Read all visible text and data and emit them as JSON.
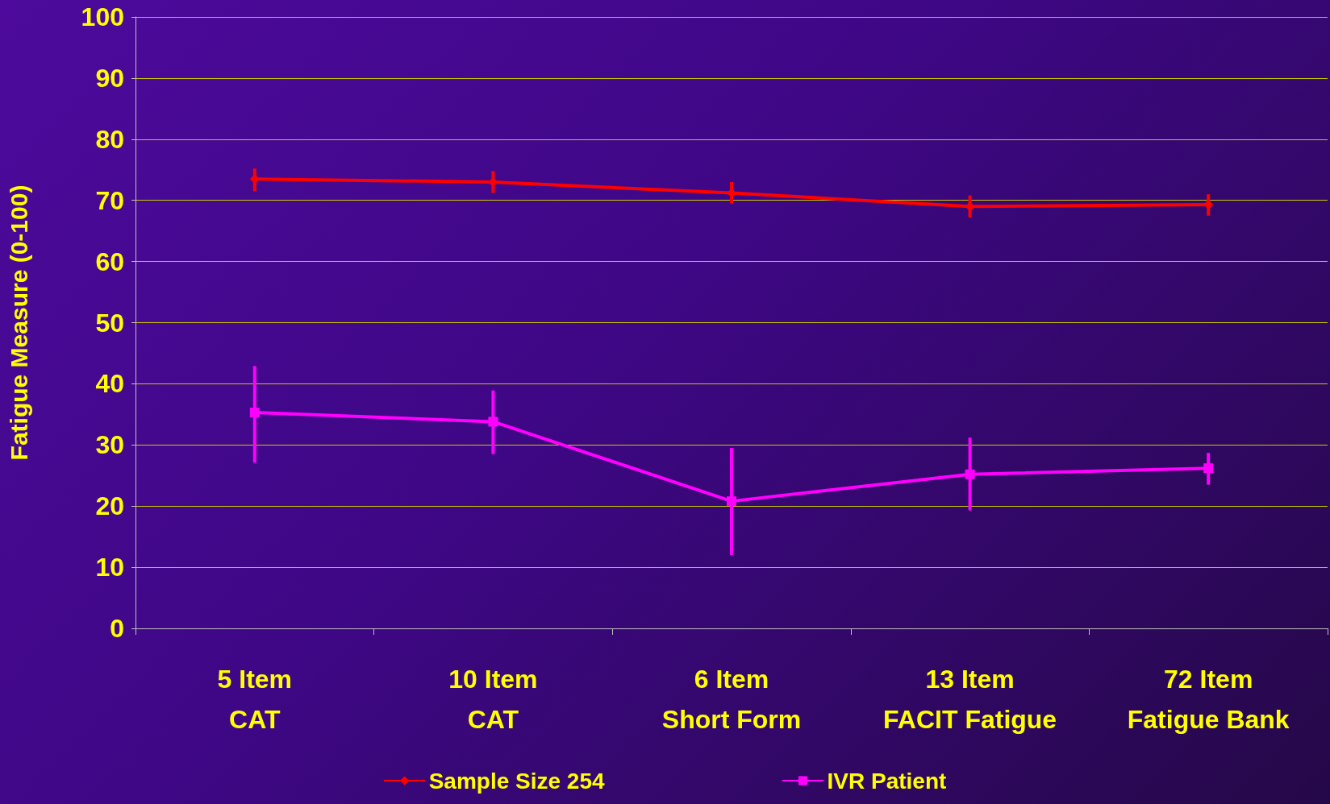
{
  "chart_data": {
    "type": "line",
    "ylabel": "Fatigue Measure (0-100)",
    "categories": [
      "5 Item\nCAT",
      "10 Item\nCAT",
      "6 Item\nShort Form",
      "13 Item\nFACIT Fatigue",
      "72 Item\nFatigue Bank"
    ],
    "series": [
      {
        "name": "Sample Size 254",
        "color": "#ff0000",
        "marker": "diamond",
        "values": [
          73.5,
          73.0,
          71.2,
          69.0,
          69.3
        ],
        "errors": [
          [
            71.5,
            75.2
          ],
          [
            71.2,
            74.8
          ],
          [
            69.5,
            73.0
          ],
          [
            67.2,
            70.8
          ],
          [
            67.5,
            71.0
          ]
        ]
      },
      {
        "name": "IVR Patient",
        "color": "#ff00ff",
        "marker": "square",
        "values": [
          35.3,
          33.8,
          20.8,
          25.2,
          26.2
        ],
        "errors": [
          [
            27.1,
            42.9
          ],
          [
            28.5,
            38.9
          ],
          [
            12.0,
            29.5
          ],
          [
            19.3,
            31.2
          ],
          [
            23.5,
            28.7
          ]
        ]
      }
    ],
    "ylim": [
      0,
      100
    ],
    "yticks": [
      0,
      10,
      20,
      30,
      40,
      50,
      60,
      70,
      80,
      90,
      100
    ],
    "grid": "y",
    "legend": "bottom"
  }
}
